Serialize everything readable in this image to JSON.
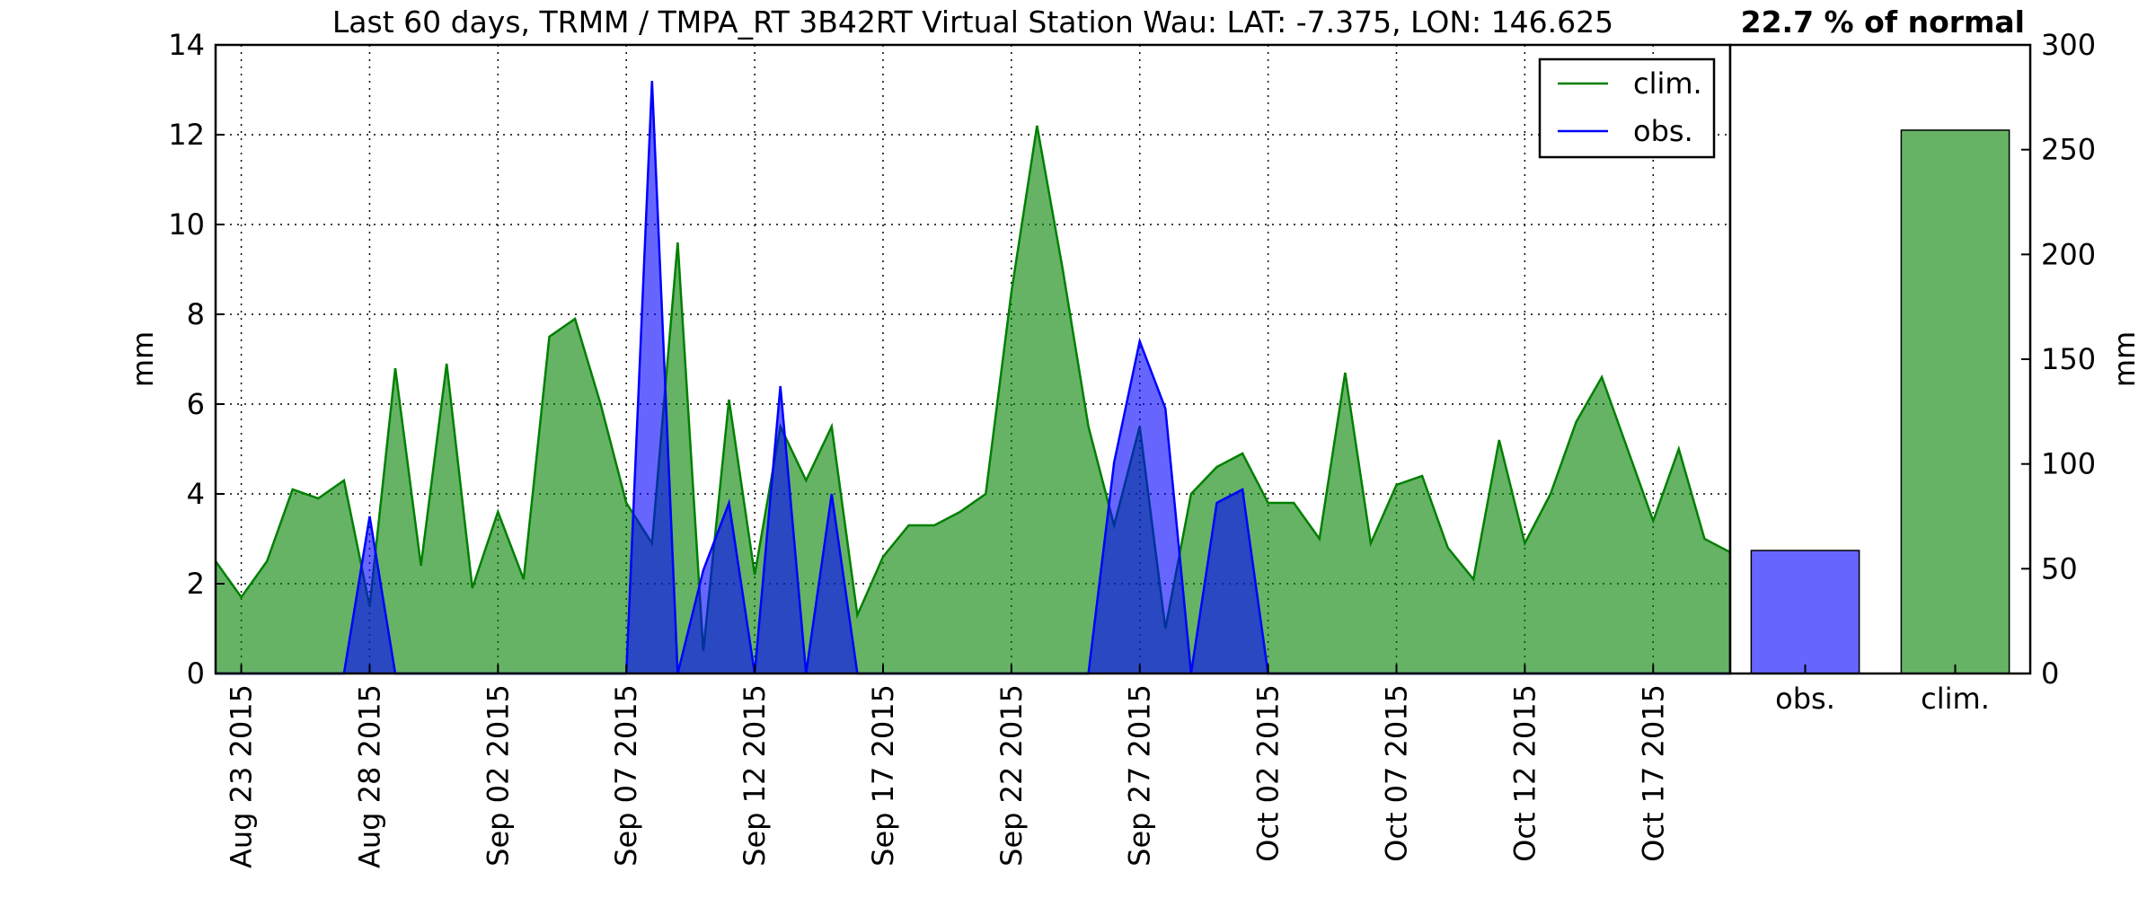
{
  "chart_data": [
    {
      "type": "area",
      "title": "Last 60 days, TRMM / TMPA_RT 3B42RT Virtual Station Wau: LAT: -7.375, LON: 146.625",
      "xlabel": "",
      "ylabel": "mm",
      "ylim": [
        0,
        14
      ],
      "yticks": [
        0,
        2,
        4,
        6,
        8,
        10,
        12,
        14
      ],
      "xlim": [
        "2015-08-22",
        "2015-10-20"
      ],
      "xticks": [
        "2015-08-23",
        "2015-08-28",
        "2015-09-02",
        "2015-09-07",
        "2015-09-12",
        "2015-09-17",
        "2015-09-22",
        "2015-09-27",
        "2015-10-02",
        "2015-10-07",
        "2015-10-12",
        "2015-10-17"
      ],
      "xtick_labels": [
        "Aug 23 2015",
        "Aug 28 2015",
        "Sep 02 2015",
        "Sep 07 2015",
        "Sep 12 2015",
        "Sep 17 2015",
        "Sep 22 2015",
        "Sep 27 2015",
        "Oct 02 2015",
        "Oct 07 2015",
        "Oct 12 2015",
        "Oct 17 2015"
      ],
      "grid": true,
      "legend": "top-right",
      "x": [
        "2015-08-22",
        "2015-08-23",
        "2015-08-24",
        "2015-08-25",
        "2015-08-26",
        "2015-08-27",
        "2015-08-28",
        "2015-08-29",
        "2015-08-30",
        "2015-08-31",
        "2015-09-01",
        "2015-09-02",
        "2015-09-03",
        "2015-09-04",
        "2015-09-05",
        "2015-09-06",
        "2015-09-07",
        "2015-09-08",
        "2015-09-09",
        "2015-09-10",
        "2015-09-11",
        "2015-09-12",
        "2015-09-13",
        "2015-09-14",
        "2015-09-15",
        "2015-09-16",
        "2015-09-17",
        "2015-09-18",
        "2015-09-19",
        "2015-09-20",
        "2015-09-21",
        "2015-09-22",
        "2015-09-23",
        "2015-09-24",
        "2015-09-25",
        "2015-09-26",
        "2015-09-27",
        "2015-09-28",
        "2015-09-29",
        "2015-09-30",
        "2015-10-01",
        "2015-10-02",
        "2015-10-03",
        "2015-10-04",
        "2015-10-05",
        "2015-10-06",
        "2015-10-07",
        "2015-10-08",
        "2015-10-09",
        "2015-10-10",
        "2015-10-11",
        "2015-10-12",
        "2015-10-13",
        "2015-10-14",
        "2015-10-15",
        "2015-10-16",
        "2015-10-17",
        "2015-10-18",
        "2015-10-19",
        "2015-10-20"
      ],
      "series": [
        {
          "name": "clim.",
          "color": "#008000",
          "fill": "#008000",
          "fill_opacity": 0.6,
          "values": [
            2.5,
            1.7,
            2.5,
            4.1,
            3.9,
            4.3,
            1.5,
            6.8,
            2.4,
            6.9,
            1.9,
            3.6,
            2.1,
            7.5,
            7.9,
            6.0,
            3.8,
            2.9,
            9.6,
            0.5,
            6.1,
            2.2,
            5.5,
            4.3,
            5.5,
            1.3,
            2.6,
            3.3,
            3.3,
            3.6,
            4.0,
            8.5,
            12.2,
            9.0,
            5.5,
            3.3,
            5.5,
            1.0,
            4.0,
            4.6,
            4.9,
            3.8,
            3.8,
            3.0,
            6.7,
            2.9,
            4.2,
            4.4,
            2.8,
            2.1,
            5.2,
            2.9,
            4.0,
            5.6,
            6.6,
            5.0,
            3.4,
            5.0,
            3.0,
            2.7
          ]
        },
        {
          "name": "obs.",
          "color": "#0000ff",
          "fill": "#0000ff",
          "fill_opacity": 0.6,
          "values": [
            0,
            0,
            0,
            0,
            0,
            0,
            3.5,
            0,
            0,
            0,
            0,
            0,
            0,
            0,
            0,
            0,
            0,
            13.2,
            0,
            2.3,
            3.8,
            0,
            6.4,
            0,
            4.0,
            0,
            0,
            0,
            0,
            0,
            0,
            0,
            0,
            0,
            0,
            4.7,
            7.4,
            5.9,
            0,
            3.8,
            4.1,
            0,
            0,
            0,
            0,
            0,
            0,
            0,
            0,
            0,
            0,
            0,
            0,
            0,
            0,
            0,
            0,
            0,
            0,
            0
          ]
        }
      ]
    },
    {
      "type": "bar",
      "title": "22.7 % of normal",
      "categories": [
        "obs.",
        "clim."
      ],
      "values": [
        58.7,
        259.3
      ],
      "colors": [
        "#0000ff",
        "#008000"
      ],
      "fill_opacity": 0.6,
      "ylabel": "mm",
      "ylim": [
        0,
        300
      ],
      "yticks": [
        0,
        50,
        100,
        150,
        200,
        250,
        300
      ]
    }
  ]
}
